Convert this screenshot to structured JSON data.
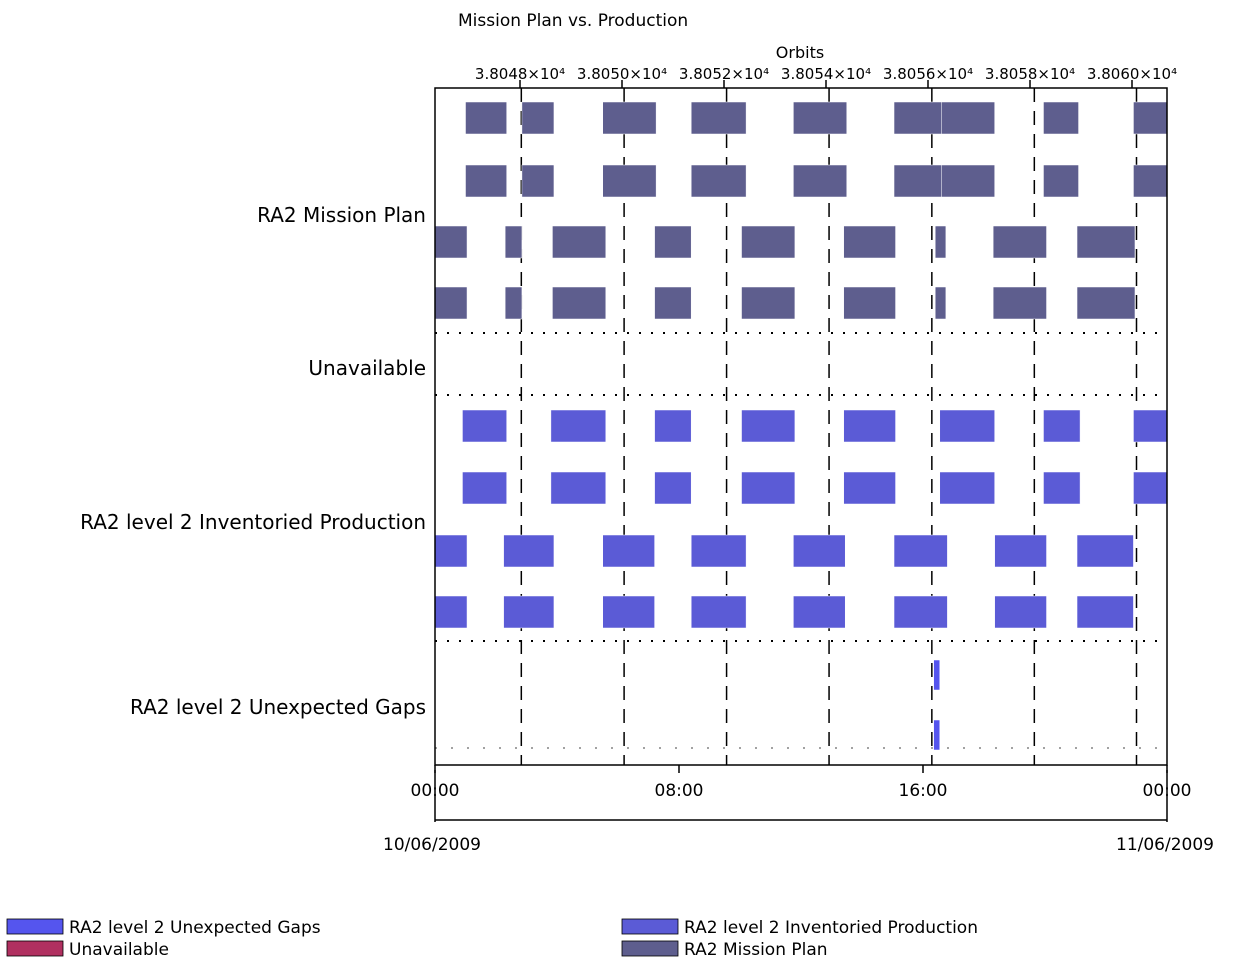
{
  "chart_data": {
    "type": "timeline",
    "title": "Mission Plan vs. Production",
    "top_axis": {
      "label": "Orbits",
      "tick_labels": [
        "3.8048×10⁴",
        "3.8050×10⁴",
        "3.8052×10⁴",
        "3.8054×10⁴",
        "3.8056×10⁴",
        "3.8058×10⁴",
        "3.8060×10⁴"
      ],
      "tick_orbits": [
        38048,
        38050,
        38052,
        38054,
        38056,
        38058,
        38060
      ]
    },
    "time_axis": {
      "tick_labels": [
        "00:00",
        "08:00",
        "16:00",
        "00:00"
      ],
      "tick_hours": [
        0,
        8,
        16,
        24
      ],
      "date_labels": [
        "10/06/2009",
        "11/06/2009"
      ],
      "xlim_hours": [
        0,
        24
      ]
    },
    "categories": [
      "RA2 Mission Plan",
      "Unavailable",
      "RA2 level 2 Inventoried Production",
      "RA2 level 2 Unexpected Gaps"
    ],
    "orbit_boundaries_hours": [
      2.83,
      6.2,
      9.56,
      12.92,
      16.29,
      19.65,
      23.0
    ],
    "series": [
      {
        "name": "RA2 Mission Plan",
        "color": "#5e5e8e",
        "rows": [
          [
            [
              1.0,
              2.35
            ],
            [
              2.85,
              3.9
            ],
            [
              5.5,
              7.25
            ],
            [
              8.4,
              10.2
            ],
            [
              11.75,
              13.5
            ],
            [
              15.05,
              16.6
            ],
            [
              16.6,
              18.35
            ],
            [
              19.95,
              21.1
            ],
            [
              22.9,
              24.0
            ]
          ],
          [
            [
              1.0,
              2.35
            ],
            [
              2.85,
              3.9
            ],
            [
              5.5,
              7.25
            ],
            [
              8.4,
              10.2
            ],
            [
              11.75,
              13.5
            ],
            [
              15.05,
              16.6
            ],
            [
              16.6,
              18.35
            ],
            [
              19.95,
              21.1
            ],
            [
              22.9,
              24.0
            ]
          ],
          [
            [
              0.0,
              1.05
            ],
            [
              2.3,
              2.85
            ],
            [
              3.85,
              5.6
            ],
            [
              7.2,
              8.4
            ],
            [
              10.05,
              11.8
            ],
            [
              13.4,
              15.1
            ],
            [
              16.4,
              16.75
            ],
            [
              18.3,
              20.05
            ],
            [
              21.05,
              22.95
            ]
          ],
          [
            [
              0.0,
              1.05
            ],
            [
              2.3,
              2.85
            ],
            [
              3.85,
              5.6
            ],
            [
              7.2,
              8.4
            ],
            [
              10.05,
              11.8
            ],
            [
              13.4,
              15.1
            ],
            [
              16.4,
              16.75
            ],
            [
              18.3,
              20.05
            ],
            [
              21.05,
              22.95
            ]
          ]
        ]
      },
      {
        "name": "Unavailable",
        "color": "#b03060",
        "rows": []
      },
      {
        "name": "RA2 level 2 Inventoried Production",
        "color": "#5b5bd6",
        "rows": [
          [
            [
              0.9,
              2.35
            ],
            [
              3.8,
              5.6
            ],
            [
              7.2,
              8.4
            ],
            [
              10.05,
              11.8
            ],
            [
              13.4,
              15.1
            ],
            [
              16.55,
              18.35
            ],
            [
              19.95,
              21.15
            ],
            [
              22.9,
              24.0
            ]
          ],
          [
            [
              0.9,
              2.35
            ],
            [
              3.8,
              5.6
            ],
            [
              7.2,
              8.4
            ],
            [
              10.05,
              11.8
            ],
            [
              13.4,
              15.1
            ],
            [
              16.55,
              18.35
            ],
            [
              19.95,
              21.15
            ],
            [
              22.9,
              24.0
            ]
          ],
          [
            [
              0.0,
              1.05
            ],
            [
              2.25,
              3.9
            ],
            [
              5.5,
              7.2
            ],
            [
              8.4,
              10.2
            ],
            [
              11.75,
              13.45
            ],
            [
              15.05,
              16.8
            ],
            [
              18.35,
              20.05
            ],
            [
              21.05,
              22.9
            ]
          ],
          [
            [
              0.0,
              1.05
            ],
            [
              2.25,
              3.9
            ],
            [
              5.5,
              7.2
            ],
            [
              8.4,
              10.2
            ],
            [
              11.75,
              13.45
            ],
            [
              15.05,
              16.8
            ],
            [
              18.35,
              20.05
            ],
            [
              21.05,
              22.9
            ]
          ]
        ]
      },
      {
        "name": "RA2 level 2 Unexpected Gaps",
        "color": "#5555ee",
        "rows": [
          [
            [
              16.35,
              16.55
            ]
          ],
          [
            [
              16.35,
              16.55
            ]
          ]
        ]
      }
    ],
    "legend": {
      "position": "bottom",
      "entries": [
        {
          "name": "RA2 level 2 Unexpected Gaps",
          "color": "#5555ee"
        },
        {
          "name": "Unavailable",
          "color": "#b03060"
        },
        {
          "name": "RA2 level 2 Inventoried Production",
          "color": "#5b5bd6"
        },
        {
          "name": "RA2 Mission Plan",
          "color": "#5e5e8e"
        }
      ]
    }
  }
}
